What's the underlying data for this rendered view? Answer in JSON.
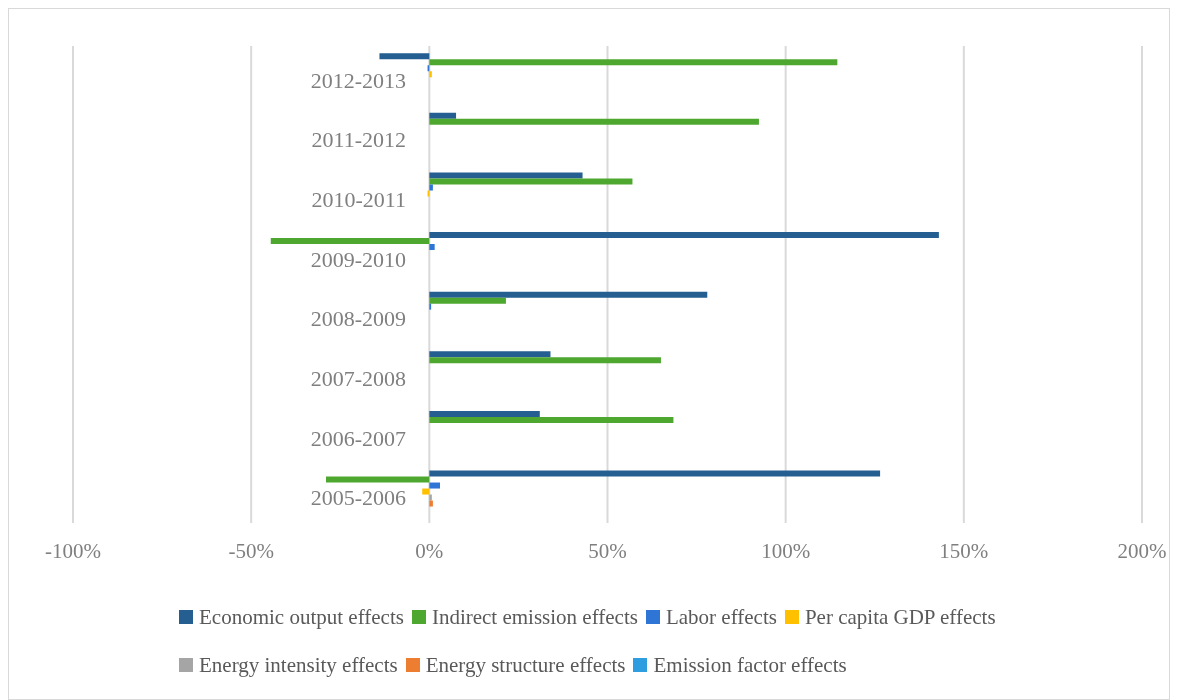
{
  "chart_data": {
    "type": "bar",
    "orientation": "horizontal",
    "categories": [
      "2012-2013",
      "2011-2012",
      "2010-2011",
      "2009-2010",
      "2008-2009",
      "2007-2008",
      "2006-2007",
      "2005-2006"
    ],
    "series": [
      {
        "name": "Economic output effects",
        "color": "#255e91",
        "values": [
          -14,
          7.5,
          43,
          143,
          78,
          34,
          31,
          126.5
        ]
      },
      {
        "name": "Indirect emission effects",
        "color": "#4ea72e",
        "values": [
          114.5,
          92.5,
          57,
          -44.5,
          21.5,
          65,
          68.5,
          -29
        ]
      },
      {
        "name": "Labor effects",
        "color": "#2e75d6",
        "values": [
          -0.5,
          0,
          1,
          1.5,
          0.5,
          0,
          0,
          3
        ]
      },
      {
        "name": "Per capita GDP effects",
        "color": "#ffc000",
        "values": [
          0.7,
          0,
          -0.5,
          0,
          0,
          0,
          0,
          -2
        ]
      },
      {
        "name": "Energy intensity effects",
        "color": "#a5a5a5",
        "values": [
          0,
          0,
          0,
          null,
          0,
          null,
          null,
          0.7
        ]
      },
      {
        "name": "Energy structure effects",
        "color": "#ed7d31",
        "values": [
          0,
          0,
          0,
          0,
          0,
          0,
          0,
          1
        ]
      },
      {
        "name": "Emission factor effects",
        "color": "#2e9ee0",
        "values": [
          0,
          0,
          0,
          0,
          0,
          0,
          0,
          0
        ]
      }
    ],
    "xlim": [
      -100,
      200
    ],
    "xticks": [
      {
        "value": -100,
        "label": "-100%"
      },
      {
        "value": -50,
        "label": "-50%"
      },
      {
        "value": 0,
        "label": "0%"
      },
      {
        "value": 50,
        "label": "50%"
      },
      {
        "value": 100,
        "label": "100%"
      },
      {
        "value": 150,
        "label": "150%"
      },
      {
        "value": 200,
        "label": "200%"
      }
    ],
    "grid": "x",
    "legend": "bottom"
  }
}
